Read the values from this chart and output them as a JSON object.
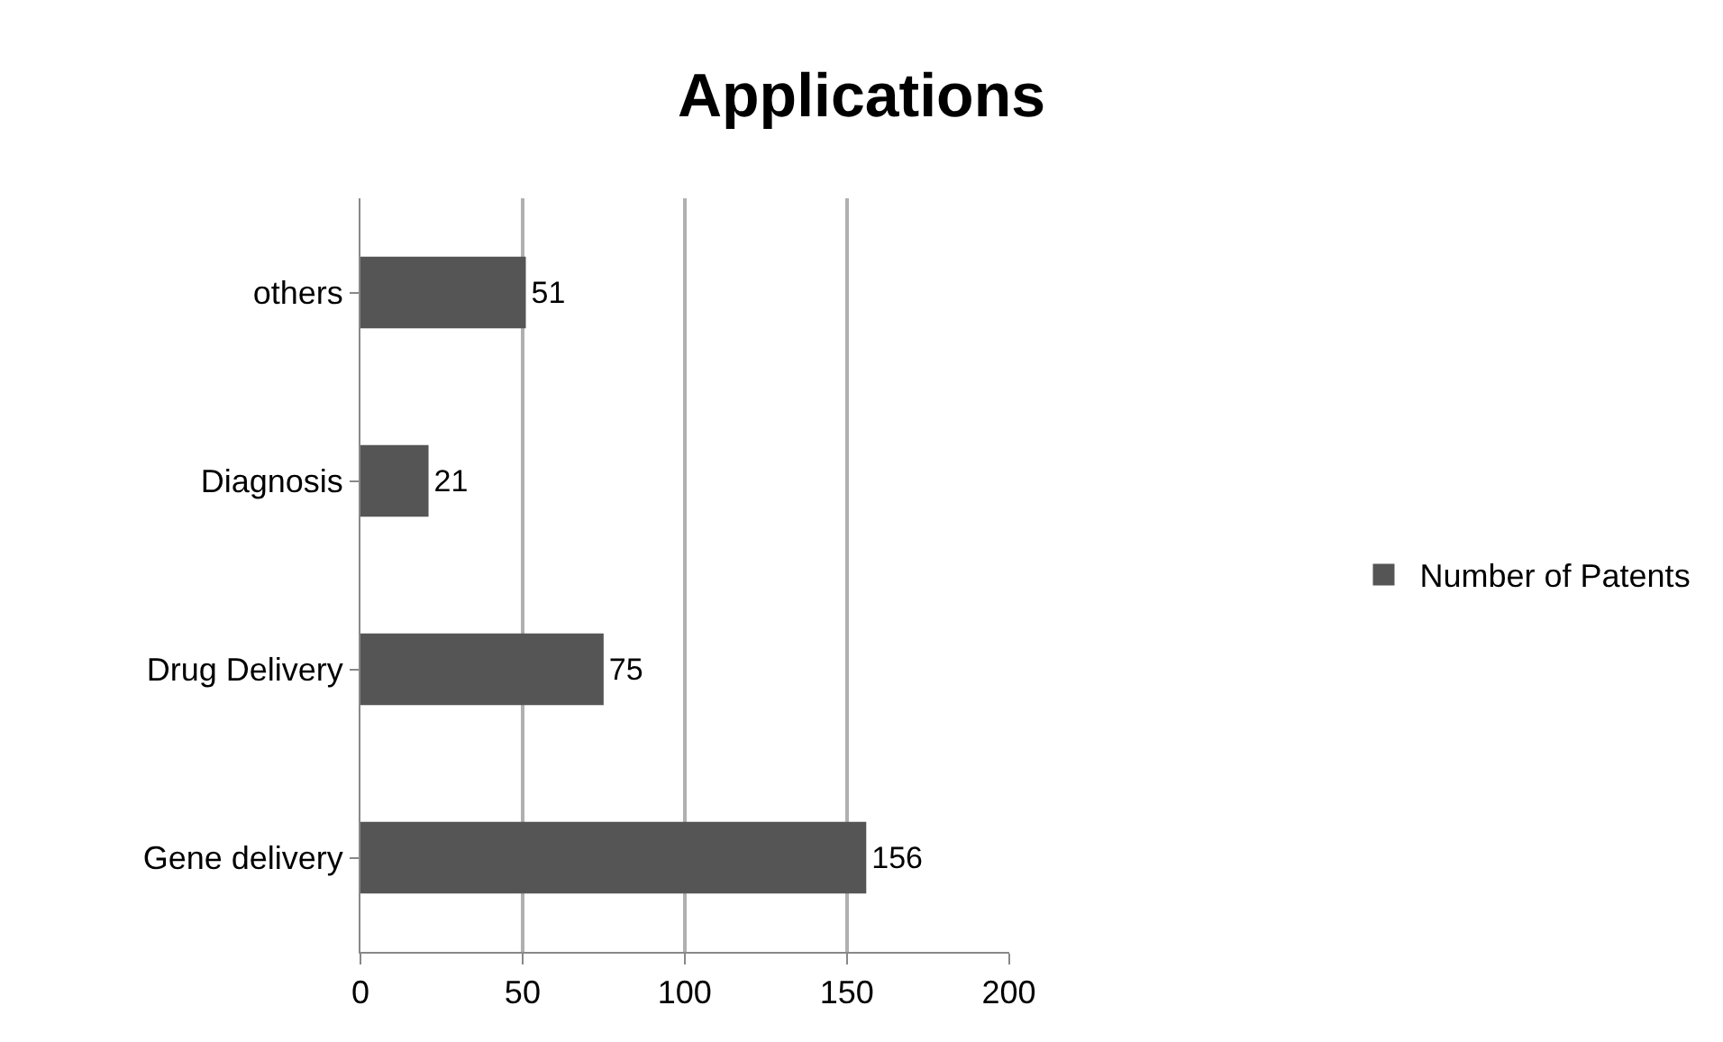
{
  "chart_data": {
    "type": "bar",
    "title": "Applications",
    "orientation": "horizontal",
    "categories": [
      "others",
      "Diagnosis",
      "Drug Delivery",
      "Gene delivery"
    ],
    "series": [
      {
        "name": "Number of Patents",
        "color": "#555555",
        "values": [
          51,
          21,
          75,
          156
        ]
      }
    ],
    "xlim": [
      0,
      200
    ],
    "xticks": [
      0,
      50,
      100,
      150,
      200
    ],
    "grid": "x",
    "legend": "right",
    "data_labels": true
  }
}
